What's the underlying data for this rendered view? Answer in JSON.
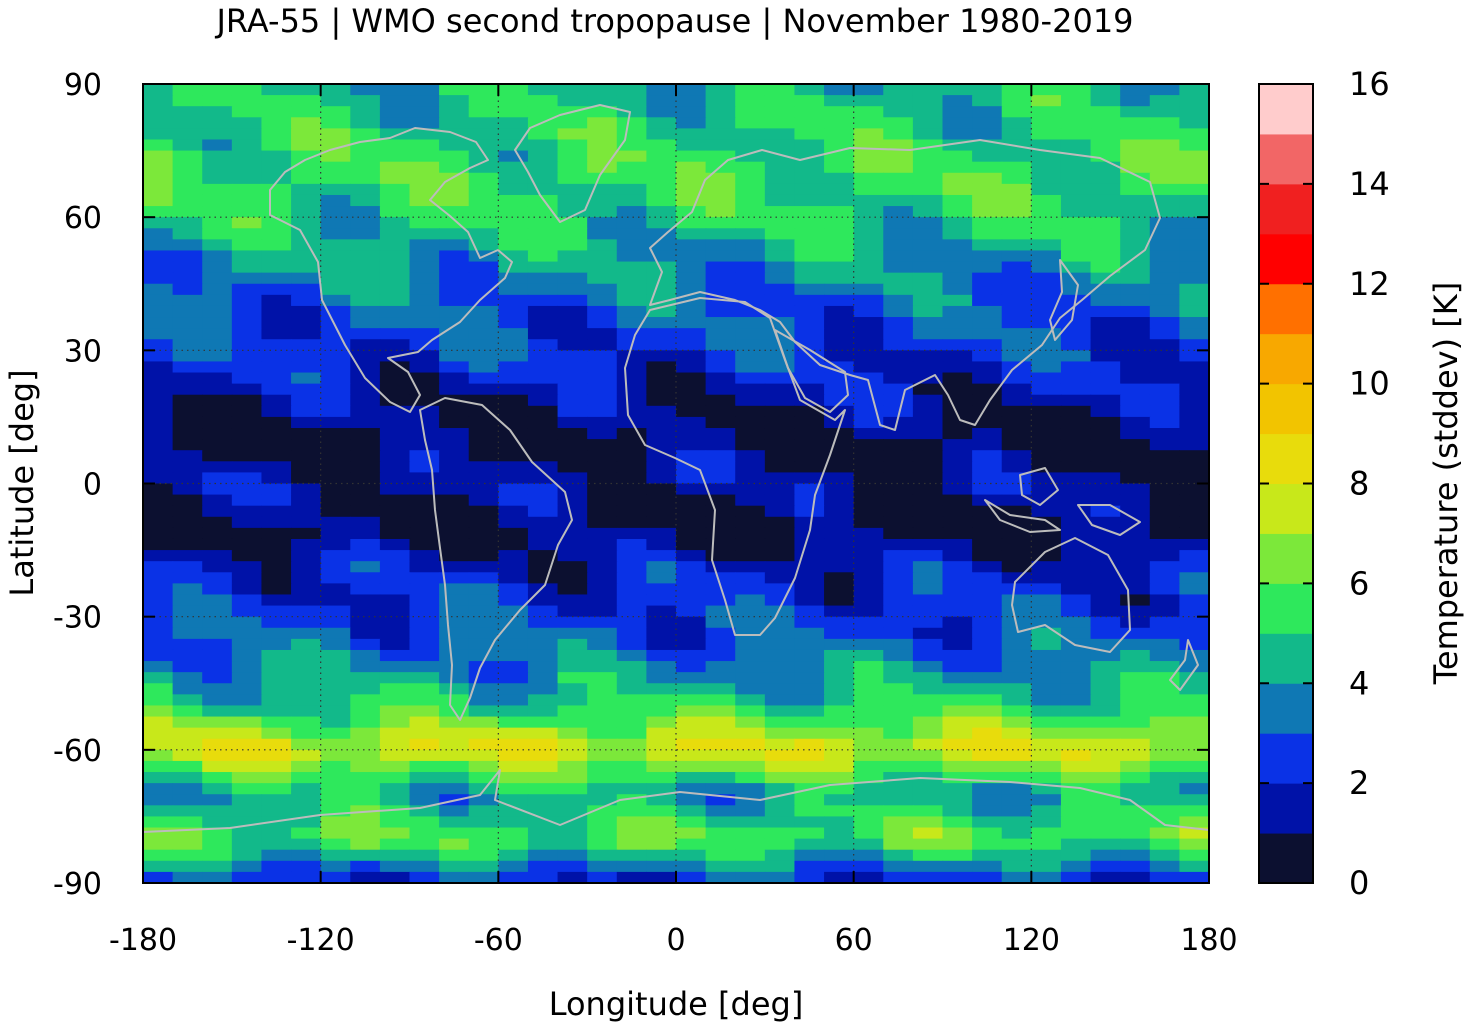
{
  "chart_data": {
    "type": "heatmap",
    "title": "JRA-55 | WMO second tropopause | November 1980-2019",
    "xlabel": "Longitude [deg]",
    "ylabel": "Latitude [deg]",
    "xlim": [
      -180,
      180
    ],
    "ylim": [
      -90,
      90
    ],
    "x_ticks": [
      -180,
      -120,
      -60,
      0,
      60,
      120,
      180
    ],
    "y_ticks": [
      90,
      60,
      30,
      0,
      -30,
      -60,
      -90
    ],
    "grid": true,
    "colorbar": {
      "label": "Temperature (stddev) [K]",
      "range": [
        0,
        16
      ],
      "ticks": [
        16,
        14,
        12,
        10,
        8,
        6,
        4,
        2,
        0
      ],
      "colors": [
        "#0c1030",
        "#0012a8",
        "#0a32e6",
        "#0f78b4",
        "#12b98a",
        "#2ee85c",
        "#7ce83a",
        "#c8e81a",
        "#e8dc0c",
        "#f2c400",
        "#f8a800",
        "#ff7000",
        "#ff0000",
        "#f02020",
        "#f26666",
        "#ffcccc"
      ]
    },
    "zonal_mean_profile": {
      "latitude": [
        90,
        80,
        70,
        60,
        50,
        40,
        30,
        20,
        10,
        0,
        -10,
        -20,
        -30,
        -40,
        -50,
        -60,
        -70,
        -80,
        -90
      ],
      "stddev_K": [
        4.5,
        5,
        5.5,
        5,
        4,
        3,
        2.5,
        1.5,
        0.5,
        1.5,
        0.5,
        2,
        2.5,
        3.5,
        5,
        8,
        4,
        6,
        2
      ]
    },
    "overlay": "coastlines"
  }
}
